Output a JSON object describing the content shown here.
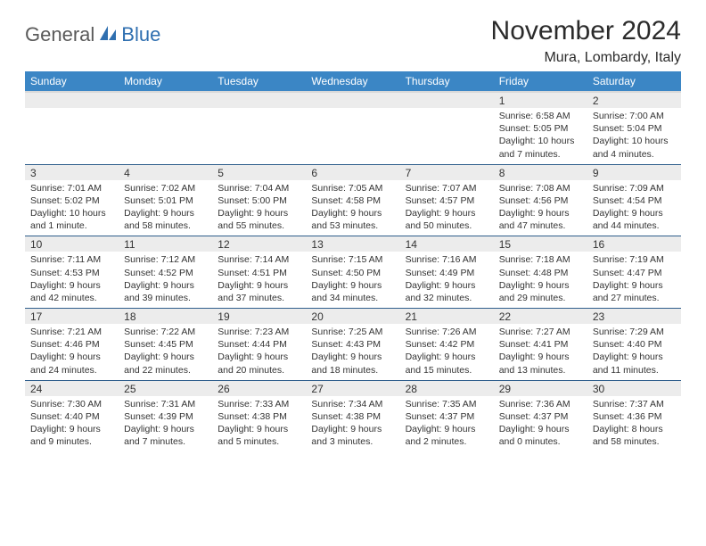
{
  "logo": {
    "general": "General",
    "blue": "Blue"
  },
  "title": "November 2024",
  "location": "Mura, Lombardy, Italy",
  "colors": {
    "header_bg": "#3b86c5",
    "header_fg": "#ffffff",
    "daynum_bg": "#ececec",
    "row_border": "#2f5e8c",
    "logo_blue": "#2f6fb0",
    "text": "#333333"
  },
  "weekdays": [
    "Sunday",
    "Monday",
    "Tuesday",
    "Wednesday",
    "Thursday",
    "Friday",
    "Saturday"
  ],
  "grid": {
    "first_weekday_index": 5,
    "days_in_month": 30
  },
  "days": {
    "1": {
      "sunrise": "6:58 AM",
      "sunset": "5:05 PM",
      "daylight": "10 hours and 7 minutes."
    },
    "2": {
      "sunrise": "7:00 AM",
      "sunset": "5:04 PM",
      "daylight": "10 hours and 4 minutes."
    },
    "3": {
      "sunrise": "7:01 AM",
      "sunset": "5:02 PM",
      "daylight": "10 hours and 1 minute."
    },
    "4": {
      "sunrise": "7:02 AM",
      "sunset": "5:01 PM",
      "daylight": "9 hours and 58 minutes."
    },
    "5": {
      "sunrise": "7:04 AM",
      "sunset": "5:00 PM",
      "daylight": "9 hours and 55 minutes."
    },
    "6": {
      "sunrise": "7:05 AM",
      "sunset": "4:58 PM",
      "daylight": "9 hours and 53 minutes."
    },
    "7": {
      "sunrise": "7:07 AM",
      "sunset": "4:57 PM",
      "daylight": "9 hours and 50 minutes."
    },
    "8": {
      "sunrise": "7:08 AM",
      "sunset": "4:56 PM",
      "daylight": "9 hours and 47 minutes."
    },
    "9": {
      "sunrise": "7:09 AM",
      "sunset": "4:54 PM",
      "daylight": "9 hours and 44 minutes."
    },
    "10": {
      "sunrise": "7:11 AM",
      "sunset": "4:53 PM",
      "daylight": "9 hours and 42 minutes."
    },
    "11": {
      "sunrise": "7:12 AM",
      "sunset": "4:52 PM",
      "daylight": "9 hours and 39 minutes."
    },
    "12": {
      "sunrise": "7:14 AM",
      "sunset": "4:51 PM",
      "daylight": "9 hours and 37 minutes."
    },
    "13": {
      "sunrise": "7:15 AM",
      "sunset": "4:50 PM",
      "daylight": "9 hours and 34 minutes."
    },
    "14": {
      "sunrise": "7:16 AM",
      "sunset": "4:49 PM",
      "daylight": "9 hours and 32 minutes."
    },
    "15": {
      "sunrise": "7:18 AM",
      "sunset": "4:48 PM",
      "daylight": "9 hours and 29 minutes."
    },
    "16": {
      "sunrise": "7:19 AM",
      "sunset": "4:47 PM",
      "daylight": "9 hours and 27 minutes."
    },
    "17": {
      "sunrise": "7:21 AM",
      "sunset": "4:46 PM",
      "daylight": "9 hours and 24 minutes."
    },
    "18": {
      "sunrise": "7:22 AM",
      "sunset": "4:45 PM",
      "daylight": "9 hours and 22 minutes."
    },
    "19": {
      "sunrise": "7:23 AM",
      "sunset": "4:44 PM",
      "daylight": "9 hours and 20 minutes."
    },
    "20": {
      "sunrise": "7:25 AM",
      "sunset": "4:43 PM",
      "daylight": "9 hours and 18 minutes."
    },
    "21": {
      "sunrise": "7:26 AM",
      "sunset": "4:42 PM",
      "daylight": "9 hours and 15 minutes."
    },
    "22": {
      "sunrise": "7:27 AM",
      "sunset": "4:41 PM",
      "daylight": "9 hours and 13 minutes."
    },
    "23": {
      "sunrise": "7:29 AM",
      "sunset": "4:40 PM",
      "daylight": "9 hours and 11 minutes."
    },
    "24": {
      "sunrise": "7:30 AM",
      "sunset": "4:40 PM",
      "daylight": "9 hours and 9 minutes."
    },
    "25": {
      "sunrise": "7:31 AM",
      "sunset": "4:39 PM",
      "daylight": "9 hours and 7 minutes."
    },
    "26": {
      "sunrise": "7:33 AM",
      "sunset": "4:38 PM",
      "daylight": "9 hours and 5 minutes."
    },
    "27": {
      "sunrise": "7:34 AM",
      "sunset": "4:38 PM",
      "daylight": "9 hours and 3 minutes."
    },
    "28": {
      "sunrise": "7:35 AM",
      "sunset": "4:37 PM",
      "daylight": "9 hours and 2 minutes."
    },
    "29": {
      "sunrise": "7:36 AM",
      "sunset": "4:37 PM",
      "daylight": "9 hours and 0 minutes."
    },
    "30": {
      "sunrise": "7:37 AM",
      "sunset": "4:36 PM",
      "daylight": "8 hours and 58 minutes."
    }
  },
  "labels": {
    "sunrise": "Sunrise: ",
    "sunset": "Sunset: ",
    "daylight": "Daylight: "
  },
  "typography": {
    "title_fontsize": 30,
    "location_fontsize": 16,
    "header_fontsize": 12,
    "cell_fontsize": 10.5
  }
}
